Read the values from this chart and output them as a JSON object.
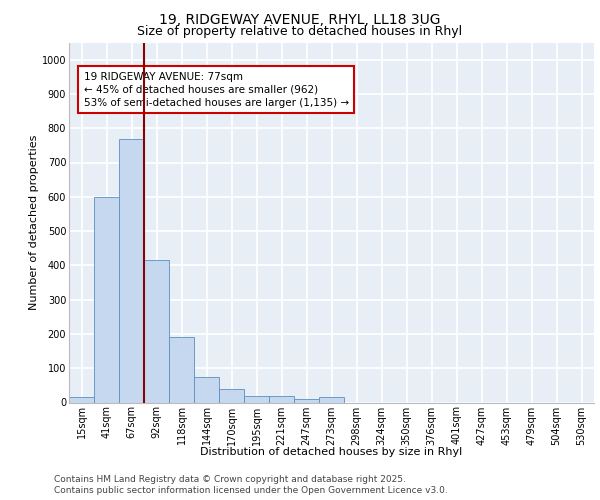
{
  "title_line1": "19, RIDGEWAY AVENUE, RHYL, LL18 3UG",
  "title_line2": "Size of property relative to detached houses in Rhyl",
  "xlabel": "Distribution of detached houses by size in Rhyl",
  "ylabel": "Number of detached properties",
  "categories": [
    "15sqm",
    "41sqm",
    "67sqm",
    "92sqm",
    "118sqm",
    "144sqm",
    "170sqm",
    "195sqm",
    "221sqm",
    "247sqm",
    "273sqm",
    "298sqm",
    "324sqm",
    "350sqm",
    "376sqm",
    "401sqm",
    "427sqm",
    "453sqm",
    "479sqm",
    "504sqm",
    "530sqm"
  ],
  "values": [
    17,
    600,
    770,
    415,
    190,
    75,
    40,
    20,
    18,
    11,
    16,
    0,
    0,
    0,
    0,
    0,
    0,
    0,
    0,
    0,
    0
  ],
  "bar_color": "#c5d8f0",
  "bar_edge_color": "#5a8fc2",
  "vline_color": "#8b0000",
  "annotation_text": "19 RIDGEWAY AVENUE: 77sqm\n← 45% of detached houses are smaller (962)\n53% of semi-detached houses are larger (1,135) →",
  "annotation_box_color": "#cc0000",
  "annotation_facecolor": "white",
  "ylim": [
    0,
    1050
  ],
  "yticks": [
    0,
    100,
    200,
    300,
    400,
    500,
    600,
    700,
    800,
    900,
    1000
  ],
  "background_color": "#e8eef5",
  "grid_color": "white",
  "footer_line1": "Contains HM Land Registry data © Crown copyright and database right 2025.",
  "footer_line2": "Contains public sector information licensed under the Open Government Licence v3.0.",
  "title_fontsize": 10,
  "subtitle_fontsize": 9,
  "axis_label_fontsize": 8,
  "tick_fontsize": 7,
  "annotation_fontsize": 7.5,
  "footer_fontsize": 6.5
}
